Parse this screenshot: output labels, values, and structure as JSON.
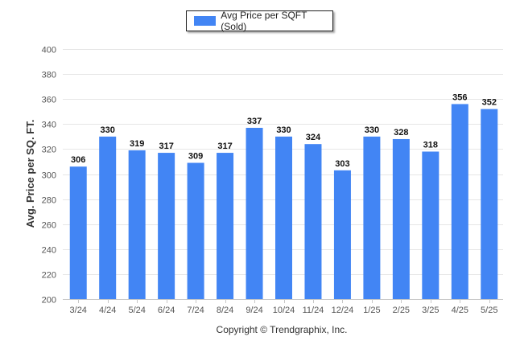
{
  "chart_data": {
    "type": "bar",
    "categories": [
      "3/24",
      "4/24",
      "5/24",
      "6/24",
      "7/24",
      "8/24",
      "9/24",
      "10/24",
      "11/24",
      "12/24",
      "1/25",
      "2/25",
      "3/25",
      "4/25",
      "5/25"
    ],
    "series": [
      {
        "name": "Avg Price per SQFT (Sold)",
        "values": [
          306,
          330,
          319,
          317,
          309,
          317,
          337,
          330,
          324,
          303,
          330,
          328,
          318,
          356,
          352
        ]
      }
    ],
    "ylabel": "Avg. Price per SQ. FT.",
    "ylim": [
      200,
      400
    ],
    "yticks": [
      200,
      220,
      240,
      260,
      280,
      300,
      320,
      340,
      360,
      380,
      400
    ],
    "grid": true,
    "legend": "top-center",
    "bar_color": "#4285F4",
    "footer": "Copyright © Trendgraphix, Inc."
  }
}
